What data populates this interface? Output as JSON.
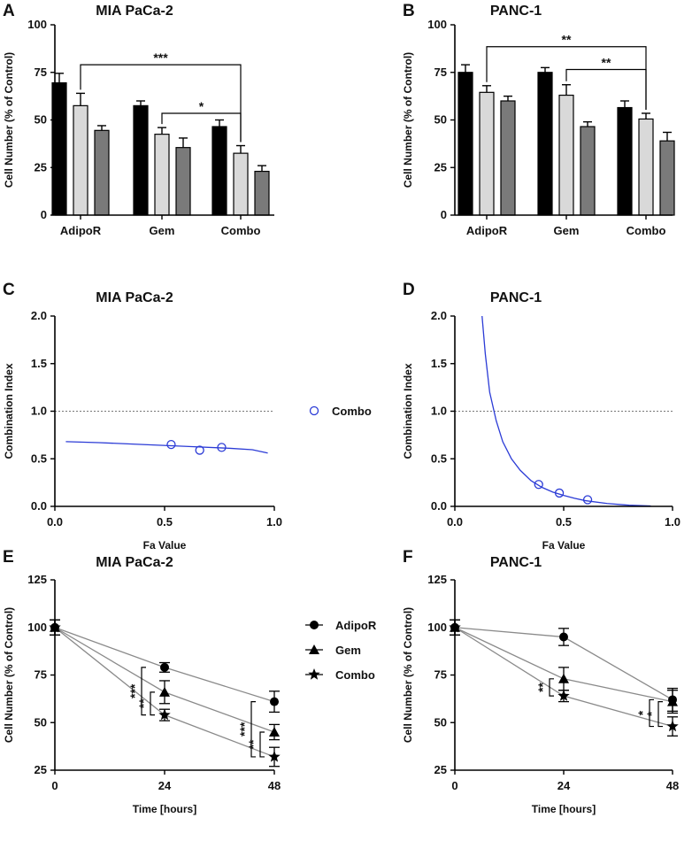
{
  "chart_data": [
    {
      "id": "A",
      "type": "bar",
      "title": "MIA PaCa-2",
      "ylabel": "Cell Number (% of Control)",
      "ylim": [
        0,
        100
      ],
      "yticks": [
        0,
        25,
        50,
        75,
        100
      ],
      "categories": [
        "AdipoR",
        "Gem",
        "Combo"
      ],
      "series": [
        {
          "name": "dark",
          "color": "#000000",
          "values": [
            69.5,
            57.5,
            46.5
          ],
          "errors": [
            5,
            2.5,
            3.5
          ]
        },
        {
          "name": "light",
          "color": "#d9d9d9",
          "values": [
            57.5,
            42.5,
            32.5
          ],
          "errors": [
            6.5,
            3.5,
            4
          ]
        },
        {
          "name": "mid",
          "color": "#7a7a7a",
          "values": [
            44.5,
            35.5,
            23
          ],
          "errors": [
            2.5,
            5,
            3
          ]
        }
      ],
      "significance": [
        {
          "label": "***",
          "from": [
            0,
            1
          ],
          "to": [
            2,
            1
          ],
          "y": 79
        },
        {
          "label": "*",
          "from": [
            1,
            1
          ],
          "to": [
            2,
            1
          ],
          "y": 53.5
        }
      ]
    },
    {
      "id": "B",
      "type": "bar",
      "title": "PANC-1",
      "ylabel": "Cell Number (% of Control)",
      "ylim": [
        0,
        100
      ],
      "yticks": [
        0,
        25,
        50,
        75,
        100
      ],
      "categories": [
        "AdipoR",
        "Gem",
        "Combo"
      ],
      "series": [
        {
          "name": "dark",
          "color": "#000000",
          "values": [
            75,
            75,
            56.5
          ],
          "errors": [
            4,
            2.5,
            3.5
          ]
        },
        {
          "name": "light",
          "color": "#d9d9d9",
          "values": [
            64.5,
            63,
            50.5
          ],
          "errors": [
            3.5,
            5.5,
            3
          ]
        },
        {
          "name": "mid",
          "color": "#7a7a7a",
          "values": [
            60,
            46.5,
            39
          ],
          "errors": [
            2.5,
            2.5,
            4.5
          ]
        }
      ],
      "significance": [
        {
          "label": "**",
          "from": [
            0,
            1
          ],
          "to": [
            2,
            1
          ],
          "y": 88.5
        },
        {
          "label": "**",
          "from": [
            1,
            1
          ],
          "to": [
            2,
            1
          ],
          "y": 76.5
        }
      ]
    },
    {
      "id": "C",
      "type": "scatter",
      "title": "MIA PaCa-2",
      "xlabel": "Fa Value",
      "ylabel": "Combination Index",
      "xlim": [
        0,
        1
      ],
      "ylim": [
        0,
        2
      ],
      "xticks": [
        "0.0",
        "0.5",
        "1.0"
      ],
      "yticks": [
        "0.0",
        "0.5",
        "1.0",
        "1.5",
        "2.0"
      ],
      "reference_line": 1.0,
      "points": [
        {
          "x": 0.53,
          "y": 0.65
        },
        {
          "x": 0.66,
          "y": 0.59
        },
        {
          "x": 0.76,
          "y": 0.62
        }
      ],
      "curve": [
        [
          0.05,
          0.68
        ],
        [
          0.2,
          0.67
        ],
        [
          0.4,
          0.65
        ],
        [
          0.6,
          0.63
        ],
        [
          0.8,
          0.61
        ],
        [
          0.9,
          0.595
        ],
        [
          0.97,
          0.56
        ]
      ],
      "color": "#2b3bd6",
      "legend": "Combo"
    },
    {
      "id": "D",
      "type": "scatter",
      "title": "PANC-1",
      "xlabel": "Fa Value",
      "ylabel": "Combination Index",
      "xlim": [
        0,
        1
      ],
      "ylim": [
        0,
        2
      ],
      "xticks": [
        "0.0",
        "0.5",
        "1.0"
      ],
      "yticks": [
        "0.0",
        "0.5",
        "1.0",
        "1.5",
        "2.0"
      ],
      "reference_line": 1.0,
      "points": [
        {
          "x": 0.385,
          "y": 0.23
        },
        {
          "x": 0.48,
          "y": 0.14
        },
        {
          "x": 0.61,
          "y": 0.07
        }
      ],
      "curve": [
        [
          0.125,
          2.0
        ],
        [
          0.14,
          1.6
        ],
        [
          0.16,
          1.2
        ],
        [
          0.19,
          0.9
        ],
        [
          0.22,
          0.68
        ],
        [
          0.26,
          0.5
        ],
        [
          0.3,
          0.38
        ],
        [
          0.35,
          0.27
        ],
        [
          0.4,
          0.2
        ],
        [
          0.45,
          0.15
        ],
        [
          0.5,
          0.115
        ],
        [
          0.55,
          0.085
        ],
        [
          0.6,
          0.06
        ],
        [
          0.7,
          0.03
        ],
        [
          0.8,
          0.012
        ],
        [
          0.9,
          0.004
        ]
      ],
      "color": "#2b3bd6"
    },
    {
      "id": "E",
      "type": "line",
      "title": "MIA PaCa-2",
      "xlabel": "Time [hours]",
      "ylabel": "Cell Number (% of Control)",
      "x": [
        0,
        24,
        48
      ],
      "xlim": [
        0,
        48
      ],
      "ylim": [
        25,
        125
      ],
      "xticks": [
        0,
        24,
        48
      ],
      "yticks": [
        25,
        50,
        75,
        100,
        125
      ],
      "series": [
        {
          "name": "AdipoR",
          "marker": "circle",
          "values": [
            100,
            79,
            61
          ],
          "errors": [
            4,
            2.5,
            5.5
          ]
        },
        {
          "name": "Gem",
          "marker": "triangle",
          "values": [
            100,
            66,
            45
          ],
          "errors": [
            4,
            6,
            4
          ]
        },
        {
          "name": "Combo",
          "marker": "star",
          "values": [
            100,
            54,
            32
          ],
          "errors": [
            4,
            3,
            5
          ]
        }
      ],
      "significance": [
        {
          "label": "***",
          "x": 24,
          "y1": 79,
          "y2": 54,
          "offset": 18
        },
        {
          "label": "**",
          "x": 24,
          "y1": 66,
          "y2": 54,
          "offset": 8
        },
        {
          "label": "***",
          "x": 48,
          "y1": 61,
          "y2": 32,
          "offset": 18
        },
        {
          "label": "**",
          "x": 48,
          "y1": 45,
          "y2": 32,
          "offset": 8
        }
      ]
    },
    {
      "id": "F",
      "type": "line",
      "title": "PANC-1",
      "xlabel": "Time [hours]",
      "ylabel": "Cell Number (% of Control)",
      "x": [
        0,
        24,
        48
      ],
      "xlim": [
        0,
        48
      ],
      "ylim": [
        25,
        125
      ],
      "xticks": [
        0,
        24,
        48
      ],
      "yticks": [
        25,
        50,
        75,
        100,
        125
      ],
      "series": [
        {
          "name": "AdipoR",
          "marker": "circle",
          "values": [
            100,
            95,
            62
          ],
          "errors": [
            4,
            4.5,
            6
          ]
        },
        {
          "name": "Gem",
          "marker": "triangle",
          "values": [
            100,
            73,
            61
          ],
          "errors": [
            4,
            6,
            6
          ]
        },
        {
          "name": "Combo",
          "marker": "star",
          "values": [
            100,
            64,
            48
          ],
          "errors": [
            4,
            3,
            5
          ]
        }
      ],
      "significance": [
        {
          "label": "**",
          "x": 24,
          "y1": 73,
          "y2": 64,
          "offset": 8
        },
        {
          "label": "*",
          "x": 48,
          "y1": 62,
          "y2": 48,
          "offset": 18
        },
        {
          "label": "*",
          "x": 48,
          "y1": 61,
          "y2": 48,
          "offset": 8
        }
      ]
    }
  ]
}
